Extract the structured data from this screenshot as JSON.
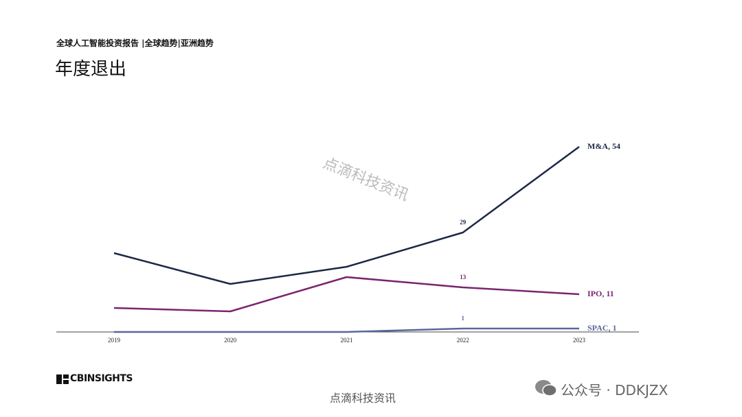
{
  "header": {
    "breadcrumb": "全球人工智能投资报告 |全球趋势|亚洲趋势",
    "title": "年度退出"
  },
  "watermark": "点滴科技资讯",
  "footer": {
    "logo": "CBINSIGHTS",
    "caption": "点滴科技资讯",
    "account": "公众号 · DDKJZX"
  },
  "chart_data": {
    "type": "line",
    "categories": [
      "2019",
      "2020",
      "2021",
      "2022",
      "2023"
    ],
    "series": [
      {
        "name": "M&A",
        "color": "#1b2745",
        "values": [
          23,
          14,
          19,
          29,
          54
        ],
        "value_labels": [
          null,
          null,
          null,
          "29",
          "M&A, 54"
        ]
      },
      {
        "name": "IPO",
        "color": "#7a2470",
        "values": [
          7,
          6,
          16,
          13,
          11
        ],
        "value_labels": [
          null,
          null,
          null,
          "13",
          "IPO, 11"
        ]
      },
      {
        "name": "SPAC",
        "color": "#58679a",
        "values": [
          0,
          0,
          0,
          1,
          1
        ],
        "value_labels": [
          null,
          null,
          null,
          "1",
          "SPAC, 1"
        ]
      }
    ]
  }
}
